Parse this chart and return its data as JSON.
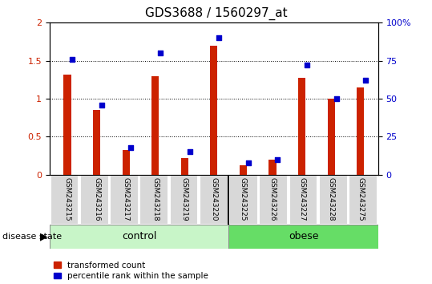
{
  "title": "GDS3688 / 1560297_at",
  "categories": [
    "GSM243215",
    "GSM243216",
    "GSM243217",
    "GSM243218",
    "GSM243219",
    "GSM243220",
    "GSM243225",
    "GSM243226",
    "GSM243227",
    "GSM243228",
    "GSM243275"
  ],
  "red_values": [
    1.32,
    0.85,
    0.32,
    1.3,
    0.22,
    1.7,
    0.12,
    0.2,
    1.27,
    1.0,
    1.15
  ],
  "blue_values": [
    76,
    46,
    18,
    80,
    15,
    90,
    8,
    10,
    72,
    50,
    62
  ],
  "group_labels": [
    "control",
    "obese"
  ],
  "control_indices": [
    0,
    1,
    2,
    3,
    4,
    5
  ],
  "obese_indices": [
    6,
    7,
    8,
    9,
    10
  ],
  "group_colors": [
    "#c8f5c8",
    "#66dd66"
  ],
  "disease_state_label": "disease state",
  "legend_red": "transformed count",
  "legend_blue": "percentile rank within the sample",
  "ylim_left": [
    0,
    2
  ],
  "ylim_right": [
    0,
    100
  ],
  "yticks_left": [
    0,
    0.5,
    1.0,
    1.5,
    2.0
  ],
  "yticks_right": [
    0,
    25,
    50,
    75,
    100
  ],
  "ytick_labels_left": [
    "0",
    "0.5",
    "1",
    "1.5",
    "2"
  ],
  "ytick_labels_right": [
    "0",
    "25",
    "50",
    "75",
    "100%"
  ],
  "bar_width": 0.25,
  "red_color": "#cc2200",
  "blue_color": "#0000cc",
  "bg_color": "#d8d8d8",
  "title_fontsize": 11,
  "tick_fontsize": 8,
  "label_fontsize": 9,
  "cat_fontsize": 6.5
}
